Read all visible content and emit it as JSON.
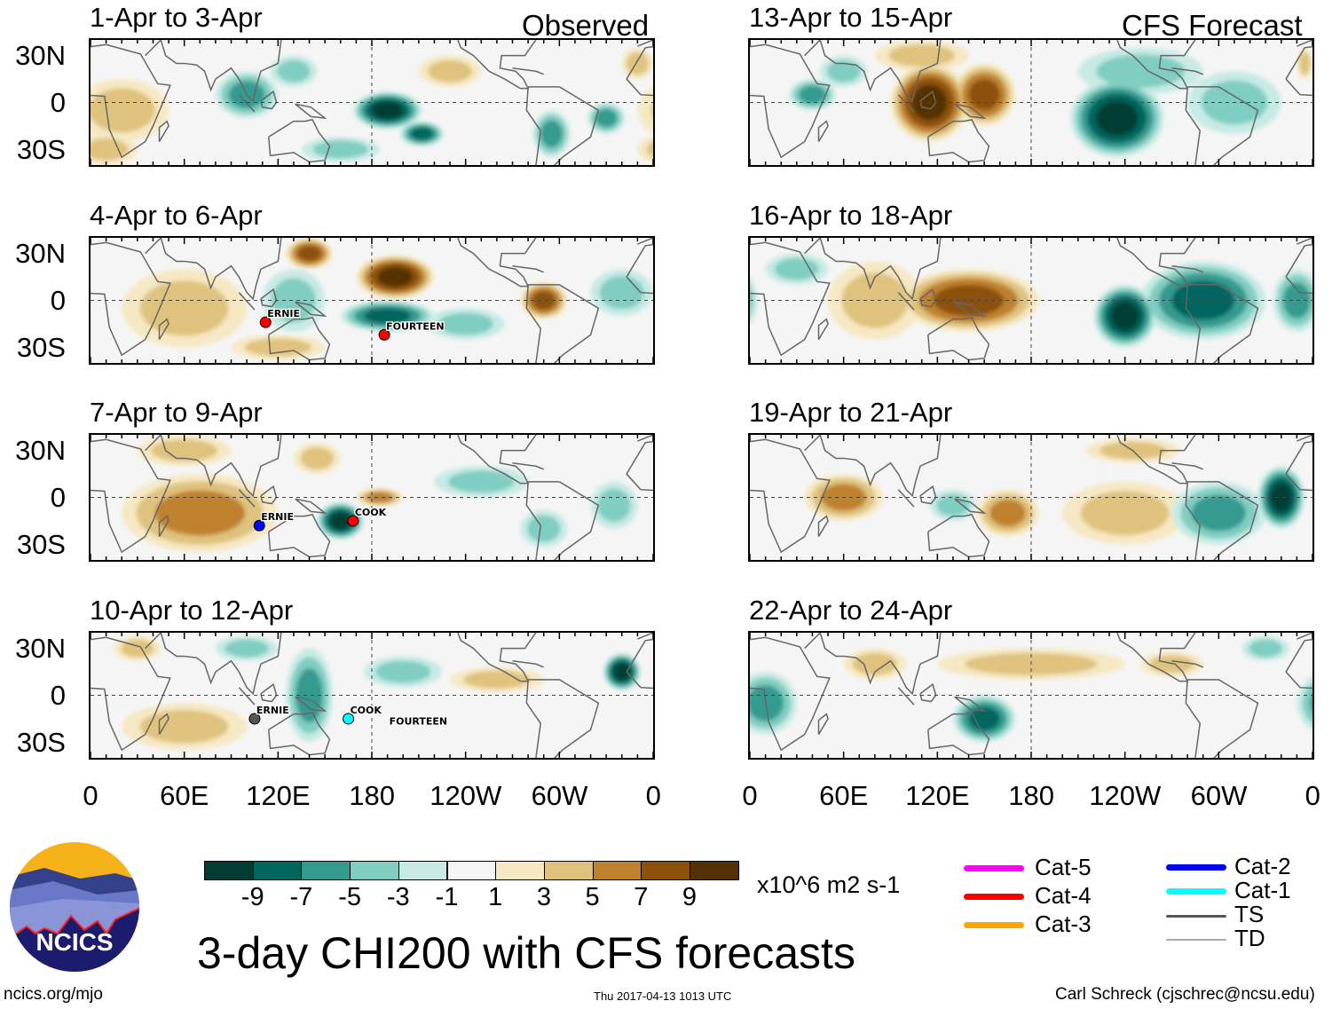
{
  "header": {
    "observed_label": "Observed",
    "forecast_label": "CFS Forecast"
  },
  "latitude_labels": [
    "30N",
    "0",
    "30S"
  ],
  "longitude_labels": [
    "0",
    "60E",
    "120E",
    "180",
    "120W",
    "60W",
    "0"
  ],
  "panels": [
    {
      "title": "1-Apr to 3-Apr",
      "group": "observed",
      "anomalies": [
        [
          20,
          -5,
          3,
          30,
          20
        ],
        [
          100,
          5,
          -5,
          20,
          15
        ],
        [
          130,
          20,
          -3,
          15,
          10
        ],
        [
          190,
          -5,
          -9,
          22,
          12
        ],
        [
          212,
          -20,
          -7,
          14,
          8
        ],
        [
          230,
          20,
          3,
          20,
          10
        ],
        [
          295,
          -20,
          -5,
          12,
          15
        ],
        [
          330,
          -10,
          -5,
          12,
          10
        ],
        [
          10,
          -30,
          3,
          20,
          10
        ],
        [
          350,
          25,
          3,
          10,
          10
        ],
        [
          160,
          -30,
          -3,
          25,
          8
        ]
      ],
      "storms": []
    },
    {
      "title": "4-Apr to 6-Apr",
      "group": "observed",
      "anomalies": [
        [
          140,
          30,
          7,
          15,
          10
        ],
        [
          195,
          15,
          9,
          25,
          14
        ],
        [
          190,
          -10,
          -7,
          30,
          10
        ],
        [
          290,
          0,
          7,
          15,
          12
        ],
        [
          60,
          -5,
          3,
          40,
          25
        ],
        [
          130,
          0,
          -3,
          20,
          20
        ],
        [
          340,
          5,
          -3,
          20,
          15
        ],
        [
          240,
          -15,
          -3,
          25,
          10
        ],
        [
          120,
          -30,
          3,
          30,
          8
        ]
      ],
      "storms": [
        {
          "name": "ERNIE",
          "lon": 112,
          "lat": -14,
          "color": "#ff0000"
        },
        {
          "name": "FOURTEEN",
          "lon": 188,
          "lat": -22,
          "color": "#ff0000"
        }
      ]
    },
    {
      "title": "7-Apr to 9-Apr",
      "group": "observed",
      "anomalies": [
        [
          70,
          -10,
          5,
          50,
          25
        ],
        [
          160,
          -15,
          -9,
          15,
          12
        ],
        [
          185,
          0,
          5,
          15,
          6
        ],
        [
          60,
          30,
          3,
          30,
          10
        ],
        [
          250,
          10,
          -3,
          30,
          10
        ],
        [
          290,
          -20,
          -3,
          15,
          12
        ],
        [
          335,
          -5,
          -3,
          15,
          15
        ],
        [
          145,
          25,
          3,
          15,
          10
        ]
      ],
      "storms": [
        {
          "name": "ERNIE",
          "lon": 108,
          "lat": -18,
          "color": "#0000ff"
        },
        {
          "name": "COOK",
          "lon": 168,
          "lat": -15,
          "color": "#ff0000"
        }
      ]
    },
    {
      "title": "10-Apr to 12-Apr",
      "group": "observed",
      "anomalies": [
        [
          140,
          0,
          -5,
          15,
          30
        ],
        [
          200,
          15,
          -3,
          25,
          10
        ],
        [
          340,
          15,
          -9,
          12,
          12
        ],
        [
          260,
          10,
          3,
          30,
          8
        ],
        [
          60,
          -20,
          3,
          40,
          15
        ],
        [
          100,
          30,
          -3,
          20,
          8
        ],
        [
          30,
          30,
          3,
          15,
          8
        ]
      ],
      "storms": [
        {
          "name": "ERNIE",
          "lon": 105,
          "lat": -15,
          "color": "#555555"
        },
        {
          "name": "COOK",
          "lon": 165,
          "lat": -15,
          "color": "#00ffff"
        },
        {
          "name": "FOURTEEN",
          "lon": 190,
          "lat": -22,
          "color": ""
        }
      ]
    },
    {
      "title": "13-Apr to 15-Apr",
      "group": "forecast",
      "anomalies": [
        [
          115,
          0,
          9,
          25,
          25
        ],
        [
          150,
          5,
          7,
          20,
          20
        ],
        [
          110,
          30,
          3,
          30,
          10
        ],
        [
          235,
          -10,
          -9,
          30,
          25
        ],
        [
          250,
          20,
          -3,
          40,
          15
        ],
        [
          40,
          5,
          -5,
          15,
          10
        ],
        [
          310,
          0,
          -3,
          30,
          20
        ],
        [
          60,
          20,
          -3,
          15,
          10
        ],
        [
          355,
          25,
          3,
          5,
          10
        ]
      ],
      "storms": []
    },
    {
      "title": "16-Apr to 18-Apr",
      "group": "forecast",
      "anomalies": [
        [
          140,
          0,
          7,
          45,
          20
        ],
        [
          240,
          -10,
          -9,
          20,
          20
        ],
        [
          290,
          0,
          -7,
          40,
          25
        ],
        [
          80,
          0,
          3,
          30,
          25
        ],
        [
          350,
          0,
          -5,
          15,
          20
        ],
        [
          30,
          20,
          -3,
          20,
          10
        ]
      ],
      "storms": []
    },
    {
      "title": "19-Apr to 21-Apr",
      "group": "forecast",
      "anomalies": [
        [
          60,
          0,
          5,
          25,
          15
        ],
        [
          165,
          -10,
          5,
          20,
          15
        ],
        [
          240,
          -10,
          3,
          40,
          20
        ],
        [
          340,
          0,
          -9,
          15,
          20
        ],
        [
          300,
          -10,
          -5,
          30,
          20
        ],
        [
          130,
          -5,
          -3,
          15,
          10
        ],
        [
          245,
          30,
          3,
          30,
          8
        ]
      ],
      "storms": []
    },
    {
      "title": "22-Apr to 24-Apr",
      "group": "forecast",
      "anomalies": [
        [
          150,
          -15,
          -7,
          20,
          15
        ],
        [
          10,
          -5,
          -5,
          20,
          20
        ],
        [
          180,
          20,
          3,
          60,
          10
        ],
        [
          80,
          20,
          3,
          20,
          10
        ],
        [
          330,
          30,
          -3,
          15,
          8
        ],
        [
          270,
          20,
          3,
          20,
          8
        ]
      ],
      "storms": []
    }
  ],
  "colorbar": {
    "colors": [
      "#023c33",
      "#03665e",
      "#369a8f",
      "#80cdc1",
      "#c7eae5",
      "#f5f5f5",
      "#f6e8c3",
      "#dfc27d",
      "#bf812d",
      "#8c510a",
      "#543005"
    ],
    "labels": [
      "-9",
      "-7",
      "-5",
      "-3",
      "-1",
      "1",
      "3",
      "5",
      "7",
      "9"
    ],
    "units": "x10^6 m2 s-1"
  },
  "legend": [
    {
      "label": "Cat-5",
      "color": "#ff00ff"
    },
    {
      "label": "Cat-4",
      "color": "#ff0000"
    },
    {
      "label": "Cat-3",
      "color": "#ffa500"
    },
    {
      "label": "Cat-2",
      "color": "#0000ff"
    },
    {
      "label": "Cat-1",
      "color": "#00ffff"
    },
    {
      "label": "TS",
      "color": "#555555"
    },
    {
      "label": "TD",
      "color": "#aaaaaa"
    }
  ],
  "title": "3-day CHI200 with CFS forecasts",
  "logo": {
    "text": "NCICS"
  },
  "footer": {
    "url": "ncics.org/mjo",
    "timestamp": "Thu 2017-04-13 1013 UTC",
    "author": "Carl Schreck (cjschrec@ncsu.edu)"
  }
}
